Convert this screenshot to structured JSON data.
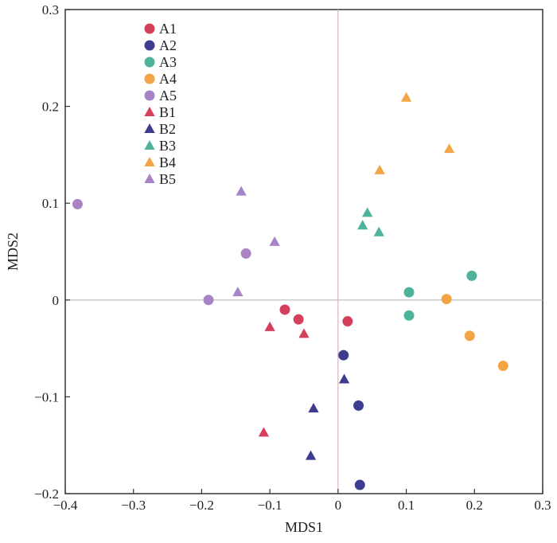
{
  "chart_data": {
    "type": "scatter",
    "title": "",
    "xlabel": "MDS1",
    "ylabel": "MDS2",
    "xlim": [
      -0.4,
      0.3
    ],
    "ylim": [
      -0.2,
      0.3
    ],
    "xticks": [
      -0.4,
      -0.3,
      -0.2,
      -0.1,
      0,
      0.1,
      0.2,
      0.3
    ],
    "yticks": [
      -0.2,
      -0.1,
      0,
      0.1,
      0.2,
      0.3
    ],
    "xtick_labels": [
      "−0.4",
      "−0.3",
      "−0.2",
      "−0.1",
      "0",
      "0.1",
      "0.2",
      "0.3"
    ],
    "ytick_labels": [
      "−0.2",
      "−0.1",
      "0",
      "0.1",
      "0.2",
      "0.3"
    ],
    "grid": false,
    "reference_lines": {
      "x": 0,
      "y": 0
    },
    "legend_position": "top-left",
    "series": [
      {
        "name": "A1",
        "marker": "circle",
        "color": "#d4405c",
        "points": [
          [
            -0.078,
            -0.01
          ],
          [
            -0.058,
            -0.02
          ],
          [
            0.014,
            -0.022
          ]
        ]
      },
      {
        "name": "A2",
        "marker": "circle",
        "color": "#3d3d8f",
        "points": [
          [
            0.008,
            -0.057
          ],
          [
            0.03,
            -0.109
          ],
          [
            0.032,
            -0.191
          ]
        ]
      },
      {
        "name": "A3",
        "marker": "circle",
        "color": "#4fb39c",
        "points": [
          [
            0.104,
            0.008
          ],
          [
            0.104,
            -0.016
          ],
          [
            0.196,
            0.025
          ]
        ]
      },
      {
        "name": "A4",
        "marker": "circle",
        "color": "#f3a545",
        "points": [
          [
            0.159,
            0.001
          ],
          [
            0.193,
            -0.037
          ],
          [
            0.242,
            -0.068
          ]
        ]
      },
      {
        "name": "A5",
        "marker": "circle",
        "color": "#a883c6",
        "points": [
          [
            -0.382,
            0.099
          ],
          [
            -0.135,
            0.048
          ],
          [
            -0.19,
            0.0
          ]
        ]
      },
      {
        "name": "B1",
        "marker": "triangle",
        "color": "#d4405c",
        "points": [
          [
            -0.1,
            -0.028
          ],
          [
            -0.05,
            -0.035
          ],
          [
            -0.109,
            -0.137
          ]
        ]
      },
      {
        "name": "B2",
        "marker": "triangle",
        "color": "#3d3d8f",
        "points": [
          [
            0.009,
            -0.082
          ],
          [
            -0.036,
            -0.112
          ],
          [
            -0.04,
            -0.161
          ]
        ]
      },
      {
        "name": "B3",
        "marker": "triangle",
        "color": "#4fb39c",
        "points": [
          [
            0.043,
            0.09
          ],
          [
            0.036,
            0.077
          ],
          [
            0.06,
            0.07
          ]
        ]
      },
      {
        "name": "B4",
        "marker": "triangle",
        "color": "#f3a545",
        "points": [
          [
            0.1,
            0.209
          ],
          [
            0.163,
            0.156
          ],
          [
            0.061,
            0.134
          ]
        ]
      },
      {
        "name": "B5",
        "marker": "triangle",
        "color": "#a883c6",
        "points": [
          [
            -0.142,
            0.112
          ],
          [
            -0.093,
            0.06
          ],
          [
            -0.147,
            0.008
          ]
        ]
      }
    ]
  }
}
